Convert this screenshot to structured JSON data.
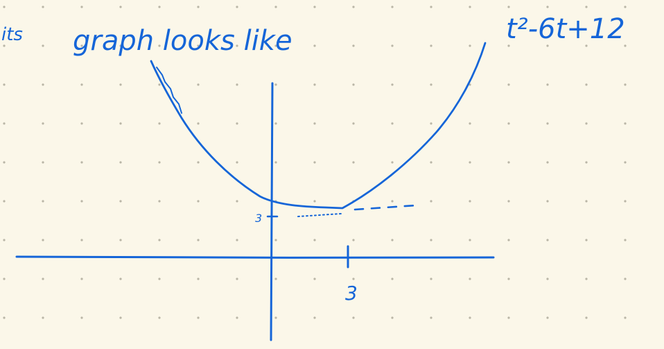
{
  "colors": {
    "paper": "#fbf7e9",
    "ink": "#1565d8",
    "dot": "#b9b5a6"
  },
  "note": {
    "fragment": "its",
    "heading": "graph looks like",
    "expression": "t²-6t+12"
  },
  "graph": {
    "y_mark_label": "3",
    "x_mark_label": "3"
  }
}
